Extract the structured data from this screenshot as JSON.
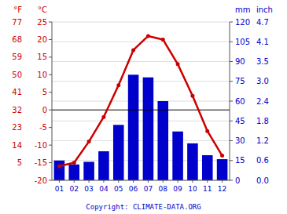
{
  "chart_data": {
    "type": "bar",
    "categories": [
      "01",
      "02",
      "03",
      "04",
      "05",
      "06",
      "07",
      "08",
      "09",
      "10",
      "11",
      "12"
    ],
    "series": [
      {
        "type": "bar",
        "axis": "y2",
        "color": "#0000cc",
        "values": [
          15,
          12,
          14,
          22,
          42,
          80,
          78,
          60,
          37,
          28,
          19,
          16
        ]
      },
      {
        "type": "line",
        "color": "#cc0000",
        "marker": "circle",
        "values": [
          -16,
          -15,
          -9,
          -2,
          7,
          17,
          21,
          20,
          13,
          4,
          -6,
          -13
        ]
      }
    ],
    "ylim": [
      -20,
      25
    ],
    "yticks": [
      -20,
      -15,
      -10,
      -5,
      0,
      5,
      10,
      15,
      20,
      25
    ],
    "ylabel": "°C",
    "ylabel_alt": "°F",
    "yticks_alt": [
      {
        "value": -15,
        "label": "5"
      },
      {
        "value": -10,
        "label": "14"
      },
      {
        "value": -5,
        "label": "23"
      },
      {
        "value": 0,
        "label": "32"
      },
      {
        "value": 5,
        "label": "41"
      },
      {
        "value": 10,
        "label": "50"
      },
      {
        "value": 15,
        "label": "59"
      },
      {
        "value": 20,
        "label": "68"
      },
      {
        "value": 25,
        "label": "77"
      }
    ],
    "y2lim": [
      0,
      120
    ],
    "y2ticks": [
      0,
      15,
      30,
      45,
      60,
      75,
      90,
      105,
      120
    ],
    "y2label": "mm",
    "y2label_alt": "inch",
    "y2ticks_alt": [
      {
        "value": 0,
        "label": "0.0"
      },
      {
        "value": 15,
        "label": "0.6"
      },
      {
        "value": 30,
        "label": "1.2"
      },
      {
        "value": 45,
        "label": "1.8"
      },
      {
        "value": 60,
        "label": "2.4"
      },
      {
        "value": 75,
        "label": "3.0"
      },
      {
        "value": 90,
        "label": "3.5"
      },
      {
        "value": 105,
        "label": "4.1"
      },
      {
        "value": 120,
        "label": "4.7"
      }
    ],
    "grid": true,
    "zero_line": 0,
    "annotations": [
      {
        "text": "Copyright: CLIMATE-DATA.ORG"
      }
    ]
  }
}
